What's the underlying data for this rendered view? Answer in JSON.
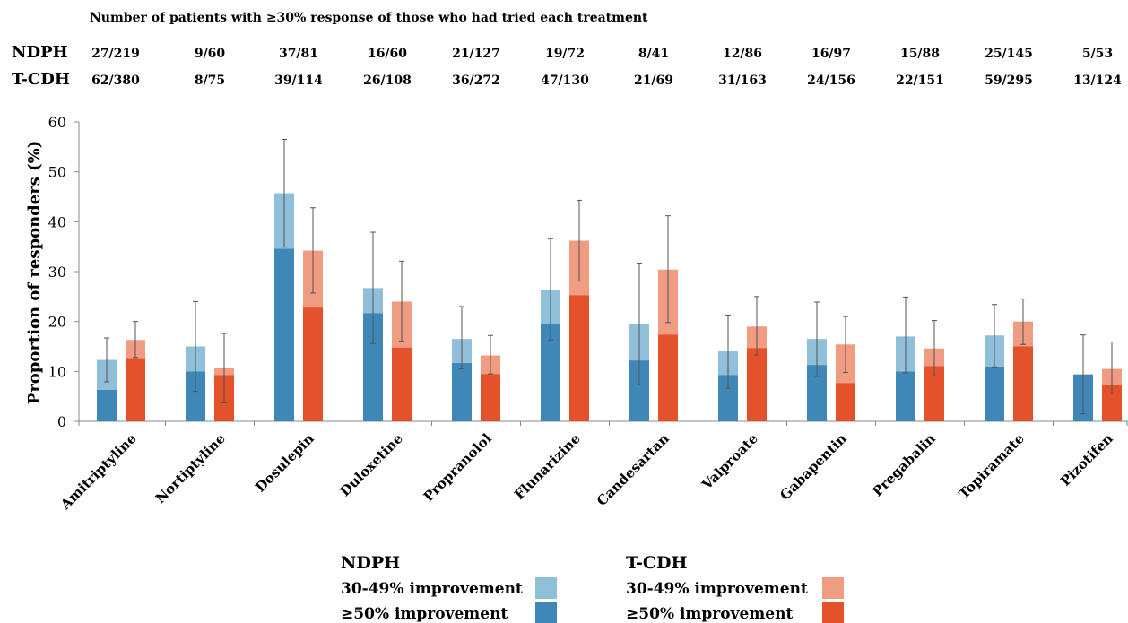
{
  "chart_data": {
    "type": "bar",
    "subtitle": "Number of patients with ≥30% response of those who had tried each treatment",
    "ylabel": "Proportion of responders (%)",
    "xlabel": "",
    "ylim": [
      0,
      60
    ],
    "yticks": [
      0,
      10,
      20,
      30,
      40,
      50,
      60
    ],
    "grid": false,
    "stacked": true,
    "categories": [
      "Amitriptyline",
      "Nortiptyline",
      "Dosulepin",
      "Duloxetine",
      "Propranolol",
      "Flunarizine",
      "Candesartan",
      "Valproate",
      "Gabapentin",
      "Pregabalin",
      "Topiramate",
      "Pizotifen"
    ],
    "ratio_rows": [
      {
        "label": "NDPH",
        "values": [
          "27/219",
          "9/60",
          "37/81",
          "16/60",
          "21/127",
          "19/72",
          "8/41",
          "12/86",
          "16/97",
          "15/88",
          "25/145",
          "5/53"
        ]
      },
      {
        "label": "T-CDH",
        "values": [
          "62/380",
          "8/75",
          "39/114",
          "26/108",
          "36/272",
          "47/130",
          "21/69",
          "31/163",
          "24/156",
          "22/151",
          "59/295",
          "13/124"
        ]
      }
    ],
    "groups": [
      {
        "name": "NDPH",
        "series": [
          {
            "name": "≥50% improvement",
            "color": "#3e87b6",
            "values": [
              6.3,
              10.0,
              34.6,
              21.7,
              11.7,
              19.4,
              12.2,
              9.3,
              11.3,
              10.0,
              11.0,
              9.4
            ]
          },
          {
            "name": "30-49% improvement",
            "color": "#8fbfd9",
            "values": [
              6.0,
              5.0,
              11.1,
              5.0,
              4.8,
              7.0,
              7.3,
              4.7,
              5.2,
              7.0,
              6.2,
              0.0
            ]
          }
        ],
        "error_low": [
          7.9,
          6.0,
          34.9,
          15.6,
          10.5,
          16.3,
          7.3,
          6.6,
          9.0,
          9.7,
          10.9,
          1.5
        ],
        "error_high": [
          16.7,
          24.0,
          56.5,
          37.9,
          23.0,
          36.6,
          31.7,
          21.3,
          23.9,
          24.9,
          23.4,
          17.3
        ]
      },
      {
        "name": "T-CDH",
        "series": [
          {
            "name": "≥50% improvement",
            "color": "#e3522a",
            "values": [
              12.7,
              9.3,
              22.8,
              14.8,
              9.5,
              25.3,
              17.4,
              14.7,
              7.7,
              11.1,
              15.0,
              7.2
            ]
          },
          {
            "name": "30-49% improvement",
            "color": "#ef9c82",
            "values": [
              3.6,
              1.4,
              11.4,
              9.2,
              3.7,
              10.9,
              13.0,
              4.3,
              7.7,
              3.5,
              5.0,
              3.3
            ]
          }
        ],
        "error_low": [
          12.8,
          3.7,
          25.7,
          16.1,
          9.5,
          28.1,
          19.8,
          13.3,
          9.8,
          9.1,
          15.4,
          5.5
        ],
        "error_high": [
          20.0,
          17.6,
          42.8,
          32.1,
          17.2,
          44.3,
          41.2,
          25.0,
          21.0,
          20.2,
          24.5,
          15.9
        ]
      }
    ],
    "legend": {
      "placement": "bottom-center",
      "groups": [
        {
          "title": "NDPH",
          "items": [
            {
              "label": "30-49% improvement",
              "color": "#8fbfd9"
            },
            {
              "label": "≥50% improvement",
              "color": "#3e87b6"
            }
          ]
        },
        {
          "title": "T-CDH",
          "items": [
            {
              "label": "30-49% improvement",
              "color": "#ef9c82"
            },
            {
              "label": "≥50% improvement",
              "color": "#e3522a"
            }
          ]
        }
      ]
    }
  }
}
